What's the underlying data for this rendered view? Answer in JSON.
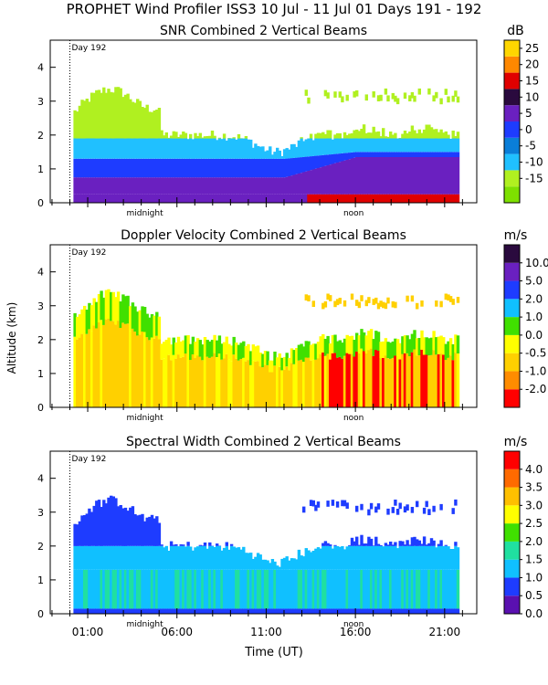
{
  "figure_title": "PROPHET Wind Profiler ISS3  10 Jul - 11 Jul 01 Days 191 - 192",
  "shared": {
    "ylabel": "Altitude (km)",
    "xlabel": "Time (UT)",
    "y_ticks": [
      0,
      1,
      2,
      3,
      4
    ],
    "ylim": [
      0,
      4.8
    ],
    "xlim_hours": [
      -1.1,
      22.8
    ],
    "x_tick_labels": [
      "01:00",
      "06:00",
      "11:00",
      "16:00",
      "21:00"
    ],
    "x_tick_hours": [
      1,
      6,
      11,
      16,
      21
    ],
    "day_marker": {
      "label": "Day 192",
      "hour": 0
    },
    "midnight_label": "midnight",
    "noon_label": "noon"
  },
  "chart_data": [
    {
      "type": "heatmap",
      "title": "SNR Combined 2 Vertical Beams",
      "unit": "dB",
      "colorbar_labels": [
        "25",
        "20",
        "15",
        "10",
        "5",
        "0",
        "-5",
        "-10",
        "-15"
      ],
      "colorbar_values": [
        25,
        20,
        15,
        10,
        5,
        0,
        -5,
        -10,
        -15
      ],
      "colors": [
        "#7ee000",
        "#b0f020",
        "#20c0ff",
        "#0a7ed8",
        "#1e3cff",
        "#6a20c0",
        "#2a0a3e",
        "#e00000",
        "#ff8800",
        "#ffd600"
      ]
    },
    {
      "type": "heatmap",
      "title": "Doppler Velocity Combined 2 Vertical Beams",
      "unit": "m/s",
      "colorbar_labels": [
        "10.0",
        "5.0",
        "2.0",
        "1.0",
        "0.0",
        "-0.5",
        "-1.0",
        "-2.0"
      ],
      "colorbar_values": [
        10.0,
        5.0,
        2.0,
        1.0,
        0.0,
        -0.5,
        -1.0,
        -2.0
      ],
      "colors": [
        "#ff0000",
        "#ff8c00",
        "#ffd000",
        "#ffff00",
        "#40e000",
        "#10c0ff",
        "#1e3cff",
        "#6a20c0",
        "#2a0a3e"
      ]
    },
    {
      "type": "heatmap",
      "title": "Spectral Width Combined 2 Vertical Beams",
      "unit": "m/s",
      "colorbar_labels": [
        "4.0",
        "3.5",
        "3.0",
        "2.5",
        "2.0",
        "1.5",
        "1.0",
        "0.5",
        "0.0"
      ],
      "colorbar_values": [
        4.0,
        3.5,
        3.0,
        2.5,
        2.0,
        1.5,
        1.0,
        0.5,
        0.0
      ],
      "colors": [
        "#5a10b0",
        "#1e3cff",
        "#10c0ff",
        "#20e0a0",
        "#40e000",
        "#ffff00",
        "#ffc000",
        "#ff6a00",
        "#ff0000"
      ]
    }
  ]
}
